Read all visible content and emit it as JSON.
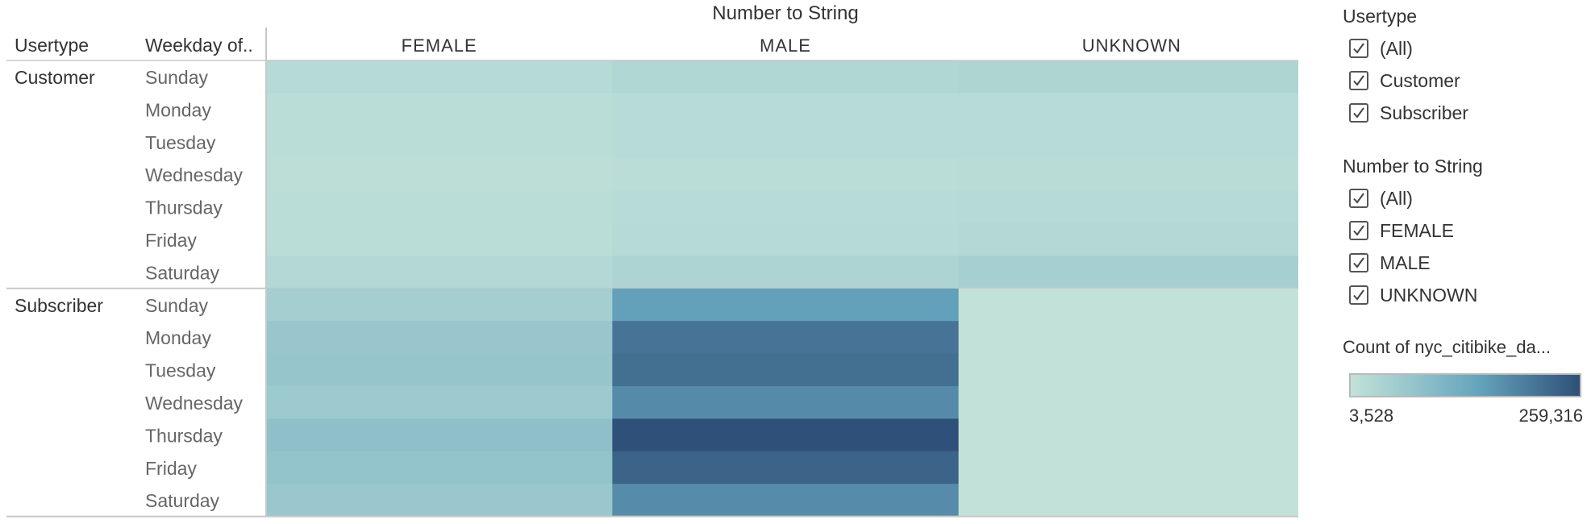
{
  "chart_data": {
    "type": "heatmap",
    "column_header_title": "Number to String",
    "row_header_1": "Usertype",
    "row_header_2": "Weekday of..",
    "columns": [
      "FEMALE",
      "MALE",
      "UNKNOWN"
    ],
    "groups": [
      {
        "usertype": "Customer",
        "rows": [
          {
            "day": "Sunday",
            "values": [
              22000,
              29000,
              33000
            ]
          },
          {
            "day": "Monday",
            "values": [
              14000,
              20000,
              20000
            ]
          },
          {
            "day": "Tuesday",
            "values": [
              14000,
              20000,
              20000
            ]
          },
          {
            "day": "Wednesday",
            "values": [
              12000,
              16000,
              17000
            ]
          },
          {
            "day": "Thursday",
            "values": [
              14000,
              20000,
              22000
            ]
          },
          {
            "day": "Friday",
            "values": [
              15000,
              22000,
              25000
            ]
          },
          {
            "day": "Saturday",
            "values": [
              26000,
              36000,
              48000
            ]
          }
        ]
      },
      {
        "usertype": "Subscriber",
        "rows": [
          {
            "day": "Sunday",
            "values": [
              50000,
              150000,
              3528
            ]
          },
          {
            "day": "Monday",
            "values": [
              68000,
              210000,
              3528
            ]
          },
          {
            "day": "Tuesday",
            "values": [
              70000,
              218000,
              3528
            ]
          },
          {
            "day": "Wednesday",
            "values": [
              60000,
              180000,
              3600
            ]
          },
          {
            "day": "Thursday",
            "values": [
              82000,
              259316,
              3700
            ]
          },
          {
            "day": "Friday",
            "values": [
              76000,
              232000,
              3650
            ]
          },
          {
            "day": "Saturday",
            "values": [
              66000,
              178000,
              3600
            ]
          }
        ]
      }
    ],
    "color_scale": {
      "min": 3528,
      "max": 259316,
      "min_label": "3,528",
      "max_label": "259,316",
      "color_low": "#c2e2d9",
      "color_mid": "#66a5bd",
      "color_high": "#2f5078"
    },
    "legend_title": "Count of nyc_citibike_da..."
  },
  "filters": [
    {
      "title": "Usertype",
      "items": [
        {
          "label": "(All)",
          "checked": true
        },
        {
          "label": "Customer",
          "checked": true
        },
        {
          "label": "Subscriber",
          "checked": true
        }
      ]
    },
    {
      "title": "Number to String",
      "items": [
        {
          "label": "(All)",
          "checked": true
        },
        {
          "label": "FEMALE",
          "checked": true
        },
        {
          "label": "MALE",
          "checked": true
        },
        {
          "label": "UNKNOWN",
          "checked": true
        }
      ]
    }
  ]
}
